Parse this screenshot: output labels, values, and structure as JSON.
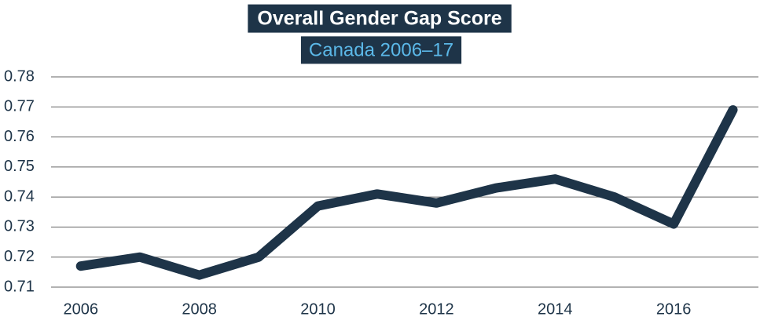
{
  "chart_data": {
    "type": "line",
    "title": "Overall Gender Gap Score",
    "subtitle": "Canada 2006–17",
    "x": [
      2006,
      2007,
      2008,
      2009,
      2010,
      2011,
      2012,
      2013,
      2014,
      2015,
      2016,
      2017
    ],
    "series": [
      {
        "name": "Canada",
        "color": "#1e3448",
        "values": [
          0.717,
          0.72,
          0.714,
          0.72,
          0.737,
          0.741,
          0.738,
          0.743,
          0.746,
          0.74,
          0.731,
          0.769
        ]
      }
    ],
    "xlim": [
      2005.5,
      2017.43
    ],
    "xticks": [
      2006,
      2008,
      2010,
      2012,
      2014,
      2016
    ],
    "ylim": [
      0.71,
      0.78
    ],
    "yticks": [
      0.71,
      0.72,
      0.73,
      0.74,
      0.75,
      0.76,
      0.77,
      0.78
    ],
    "grid": true
  }
}
